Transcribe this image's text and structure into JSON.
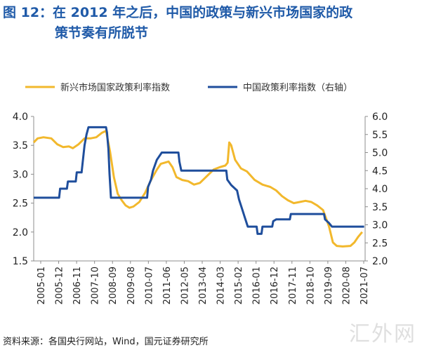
{
  "title": {
    "line1": "图 12：在 2012 年之后，中国的政策与新兴市场国家的政",
    "line2": "策节奏有所脱节"
  },
  "source": "资料来源：各国央行网站，Wind，国元证券研究所",
  "watermark": "汇外网",
  "colors": {
    "title": "#1f5aa8",
    "series_em": "#f2b82c",
    "series_cn": "#1f4e9c",
    "axis": "#8c8c8c"
  },
  "chart_data": {
    "type": "line",
    "legend_position": "top",
    "grid": false,
    "x_ticks": [
      "2005-01",
      "2005-12",
      "2006-11",
      "2007-10",
      "2008-09",
      "2009-08",
      "2010-07",
      "2011-06",
      "2012-05",
      "2013-04",
      "2014-03",
      "2015-02",
      "2016-01",
      "2016-12",
      "2017-11",
      "2018-10",
      "2019-09",
      "2020-08",
      "2021-07"
    ],
    "y_left": {
      "ticks": [
        "1.5",
        "2.0",
        "2.5",
        "3.0",
        "3.5",
        "4.0"
      ],
      "lim": [
        1.5,
        4.0
      ]
    },
    "y_right": {
      "ticks": [
        "2.0",
        "2.5",
        "3.0",
        "3.5",
        "4.0",
        "4.5",
        "5.0",
        "5.5",
        "6.0"
      ],
      "lim": [
        2.0,
        6.0
      ]
    },
    "series": [
      {
        "name": "新兴市场国家政策利率指数",
        "axis": "left",
        "points": [
          [
            2005.0,
            3.55
          ],
          [
            2005.2,
            3.62
          ],
          [
            2005.5,
            3.64
          ],
          [
            2005.9,
            3.62
          ],
          [
            2006.2,
            3.52
          ],
          [
            2006.5,
            3.47
          ],
          [
            2006.8,
            3.48
          ],
          [
            2007.0,
            3.45
          ],
          [
            2007.3,
            3.52
          ],
          [
            2007.6,
            3.62
          ],
          [
            2007.9,
            3.62
          ],
          [
            2008.2,
            3.64
          ],
          [
            2008.5,
            3.72
          ],
          [
            2008.7,
            3.75
          ],
          [
            2008.9,
            3.4
          ],
          [
            2009.1,
            2.95
          ],
          [
            2009.3,
            2.66
          ],
          [
            2009.5,
            2.55
          ],
          [
            2009.7,
            2.46
          ],
          [
            2009.9,
            2.42
          ],
          [
            2010.1,
            2.44
          ],
          [
            2010.4,
            2.52
          ],
          [
            2010.7,
            2.68
          ],
          [
            2011.0,
            2.9
          ],
          [
            2011.3,
            3.08
          ],
          [
            2011.5,
            3.18
          ],
          [
            2011.7,
            3.2
          ],
          [
            2011.9,
            3.22
          ],
          [
            2012.1,
            3.12
          ],
          [
            2012.3,
            2.95
          ],
          [
            2012.6,
            2.9
          ],
          [
            2012.9,
            2.88
          ],
          [
            2013.2,
            2.82
          ],
          [
            2013.5,
            2.85
          ],
          [
            2013.9,
            2.98
          ],
          [
            2014.2,
            3.08
          ],
          [
            2014.5,
            3.12
          ],
          [
            2014.8,
            3.15
          ],
          [
            2014.92,
            3.2
          ],
          [
            2015.0,
            3.55
          ],
          [
            2015.1,
            3.5
          ],
          [
            2015.3,
            3.25
          ],
          [
            2015.6,
            3.1
          ],
          [
            2015.9,
            3.05
          ],
          [
            2016.3,
            2.9
          ],
          [
            2016.7,
            2.82
          ],
          [
            2017.1,
            2.78
          ],
          [
            2017.4,
            2.72
          ],
          [
            2017.7,
            2.62
          ],
          [
            2018.0,
            2.55
          ],
          [
            2018.3,
            2.5
          ],
          [
            2018.6,
            2.52
          ],
          [
            2018.9,
            2.54
          ],
          [
            2019.2,
            2.52
          ],
          [
            2019.5,
            2.46
          ],
          [
            2019.8,
            2.38
          ],
          [
            2020.1,
            2.1
          ],
          [
            2020.3,
            1.82
          ],
          [
            2020.5,
            1.76
          ],
          [
            2020.8,
            1.75
          ],
          [
            2021.2,
            1.76
          ],
          [
            2021.4,
            1.82
          ],
          [
            2021.6,
            1.92
          ],
          [
            2021.8,
            2.0
          ]
        ]
      },
      {
        "name": "中国政策利率指数（右轴）",
        "axis": "right",
        "points": [
          [
            2005.0,
            3.75
          ],
          [
            2006.3,
            3.75
          ],
          [
            2006.35,
            4.0
          ],
          [
            2006.7,
            4.0
          ],
          [
            2006.75,
            4.2
          ],
          [
            2007.15,
            4.2
          ],
          [
            2007.2,
            4.45
          ],
          [
            2007.45,
            4.45
          ],
          [
            2007.5,
            4.7
          ],
          [
            2007.55,
            4.95
          ],
          [
            2007.6,
            5.2
          ],
          [
            2007.7,
            5.5
          ],
          [
            2007.8,
            5.7
          ],
          [
            2008.7,
            5.7
          ],
          [
            2008.75,
            5.55
          ],
          [
            2008.82,
            5.1
          ],
          [
            2008.88,
            4.4
          ],
          [
            2008.95,
            3.75
          ],
          [
            2010.8,
            3.75
          ],
          [
            2010.85,
            4.05
          ],
          [
            2011.0,
            4.25
          ],
          [
            2011.1,
            4.5
          ],
          [
            2011.3,
            4.8
          ],
          [
            2011.55,
            5.0
          ],
          [
            2012.4,
            5.0
          ],
          [
            2012.45,
            4.75
          ],
          [
            2012.55,
            4.5
          ],
          [
            2014.85,
            4.5
          ],
          [
            2014.9,
            4.25
          ],
          [
            2015.1,
            4.1
          ],
          [
            2015.4,
            3.95
          ],
          [
            2015.5,
            3.7
          ],
          [
            2015.65,
            3.45
          ],
          [
            2015.8,
            3.2
          ],
          [
            2015.95,
            2.95
          ],
          [
            2016.4,
            2.95
          ],
          [
            2016.45,
            2.75
          ],
          [
            2016.65,
            2.75
          ],
          [
            2016.7,
            2.95
          ],
          [
            2017.2,
            2.95
          ],
          [
            2017.25,
            3.1
          ],
          [
            2017.4,
            3.15
          ],
          [
            2018.1,
            3.15
          ],
          [
            2018.15,
            3.3
          ],
          [
            2019.85,
            3.3
          ],
          [
            2019.9,
            3.15
          ],
          [
            2020.1,
            3.05
          ],
          [
            2020.25,
            2.95
          ],
          [
            2021.9,
            2.95
          ]
        ]
      }
    ]
  }
}
